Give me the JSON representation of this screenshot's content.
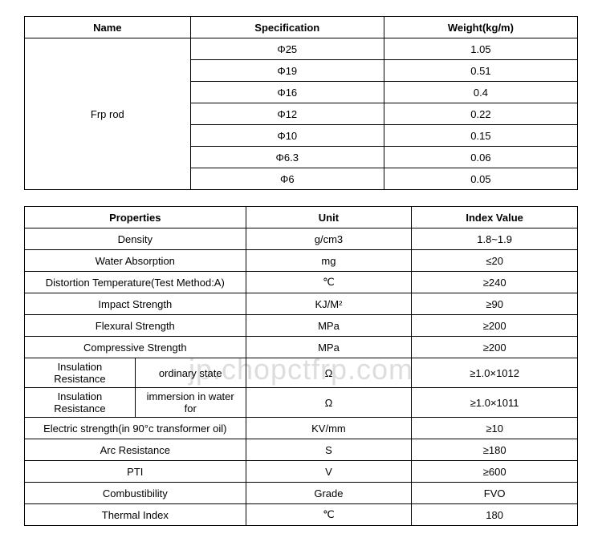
{
  "table1": {
    "headers": [
      "Name",
      "Specification",
      "Weight(kg/m)"
    ],
    "productName": "Frp rod",
    "rows": [
      {
        "spec": "Φ25",
        "weight": "1.05"
      },
      {
        "spec": "Φ19",
        "weight": "0.51"
      },
      {
        "spec": "Φ16",
        "weight": "0.4"
      },
      {
        "spec": "Φ12",
        "weight": "0.22"
      },
      {
        "spec": "Φ10",
        "weight": "0.15"
      },
      {
        "spec": "Φ6.3",
        "weight": "0.06"
      },
      {
        "spec": "Φ6",
        "weight": "0.05"
      }
    ]
  },
  "table2": {
    "headers": [
      "Properties",
      "Unit",
      "Index Value"
    ],
    "rows": [
      {
        "prop": "Density",
        "unit": "g/cm3",
        "val": "1.8~1.9"
      },
      {
        "prop": "Water Absorption",
        "unit": "mg",
        "val": "≤20"
      },
      {
        "prop": "Distortion Temperature(Test Method:A)",
        "unit": "℃",
        "val": "≥240"
      },
      {
        "prop": "Impact Strength",
        "unit": "KJ/M²",
        "val": "≥90"
      },
      {
        "prop": "Flexural Strength",
        "unit": "MPa",
        "val": "≥200"
      },
      {
        "prop": "Compressive Strength",
        "unit": "MPa",
        "val": "≥200"
      },
      {
        "propA": "Insulation Resistance",
        "propB": "ordinary state",
        "unit": "Ω",
        "val": "≥1.0×1012"
      },
      {
        "propA": "Insulation Resistance",
        "propB": "immersion in water for",
        "unit": "Ω",
        "val": "≥1.0×1011"
      },
      {
        "prop": "Electric strength(in 90°c transformer oil)",
        "unit": "KV/mm",
        "val": "≥10"
      },
      {
        "prop": "Arc Resistance",
        "unit": "S",
        "val": "≥180"
      },
      {
        "prop": "PTI",
        "unit": "V",
        "val": "≥600"
      },
      {
        "prop": "Combustibility",
        "unit": "Grade",
        "val": "FVO"
      },
      {
        "prop": "Thermal Index",
        "unit": "℃",
        "val": "180"
      }
    ]
  },
  "watermark": "jp.chopctfrp.com"
}
